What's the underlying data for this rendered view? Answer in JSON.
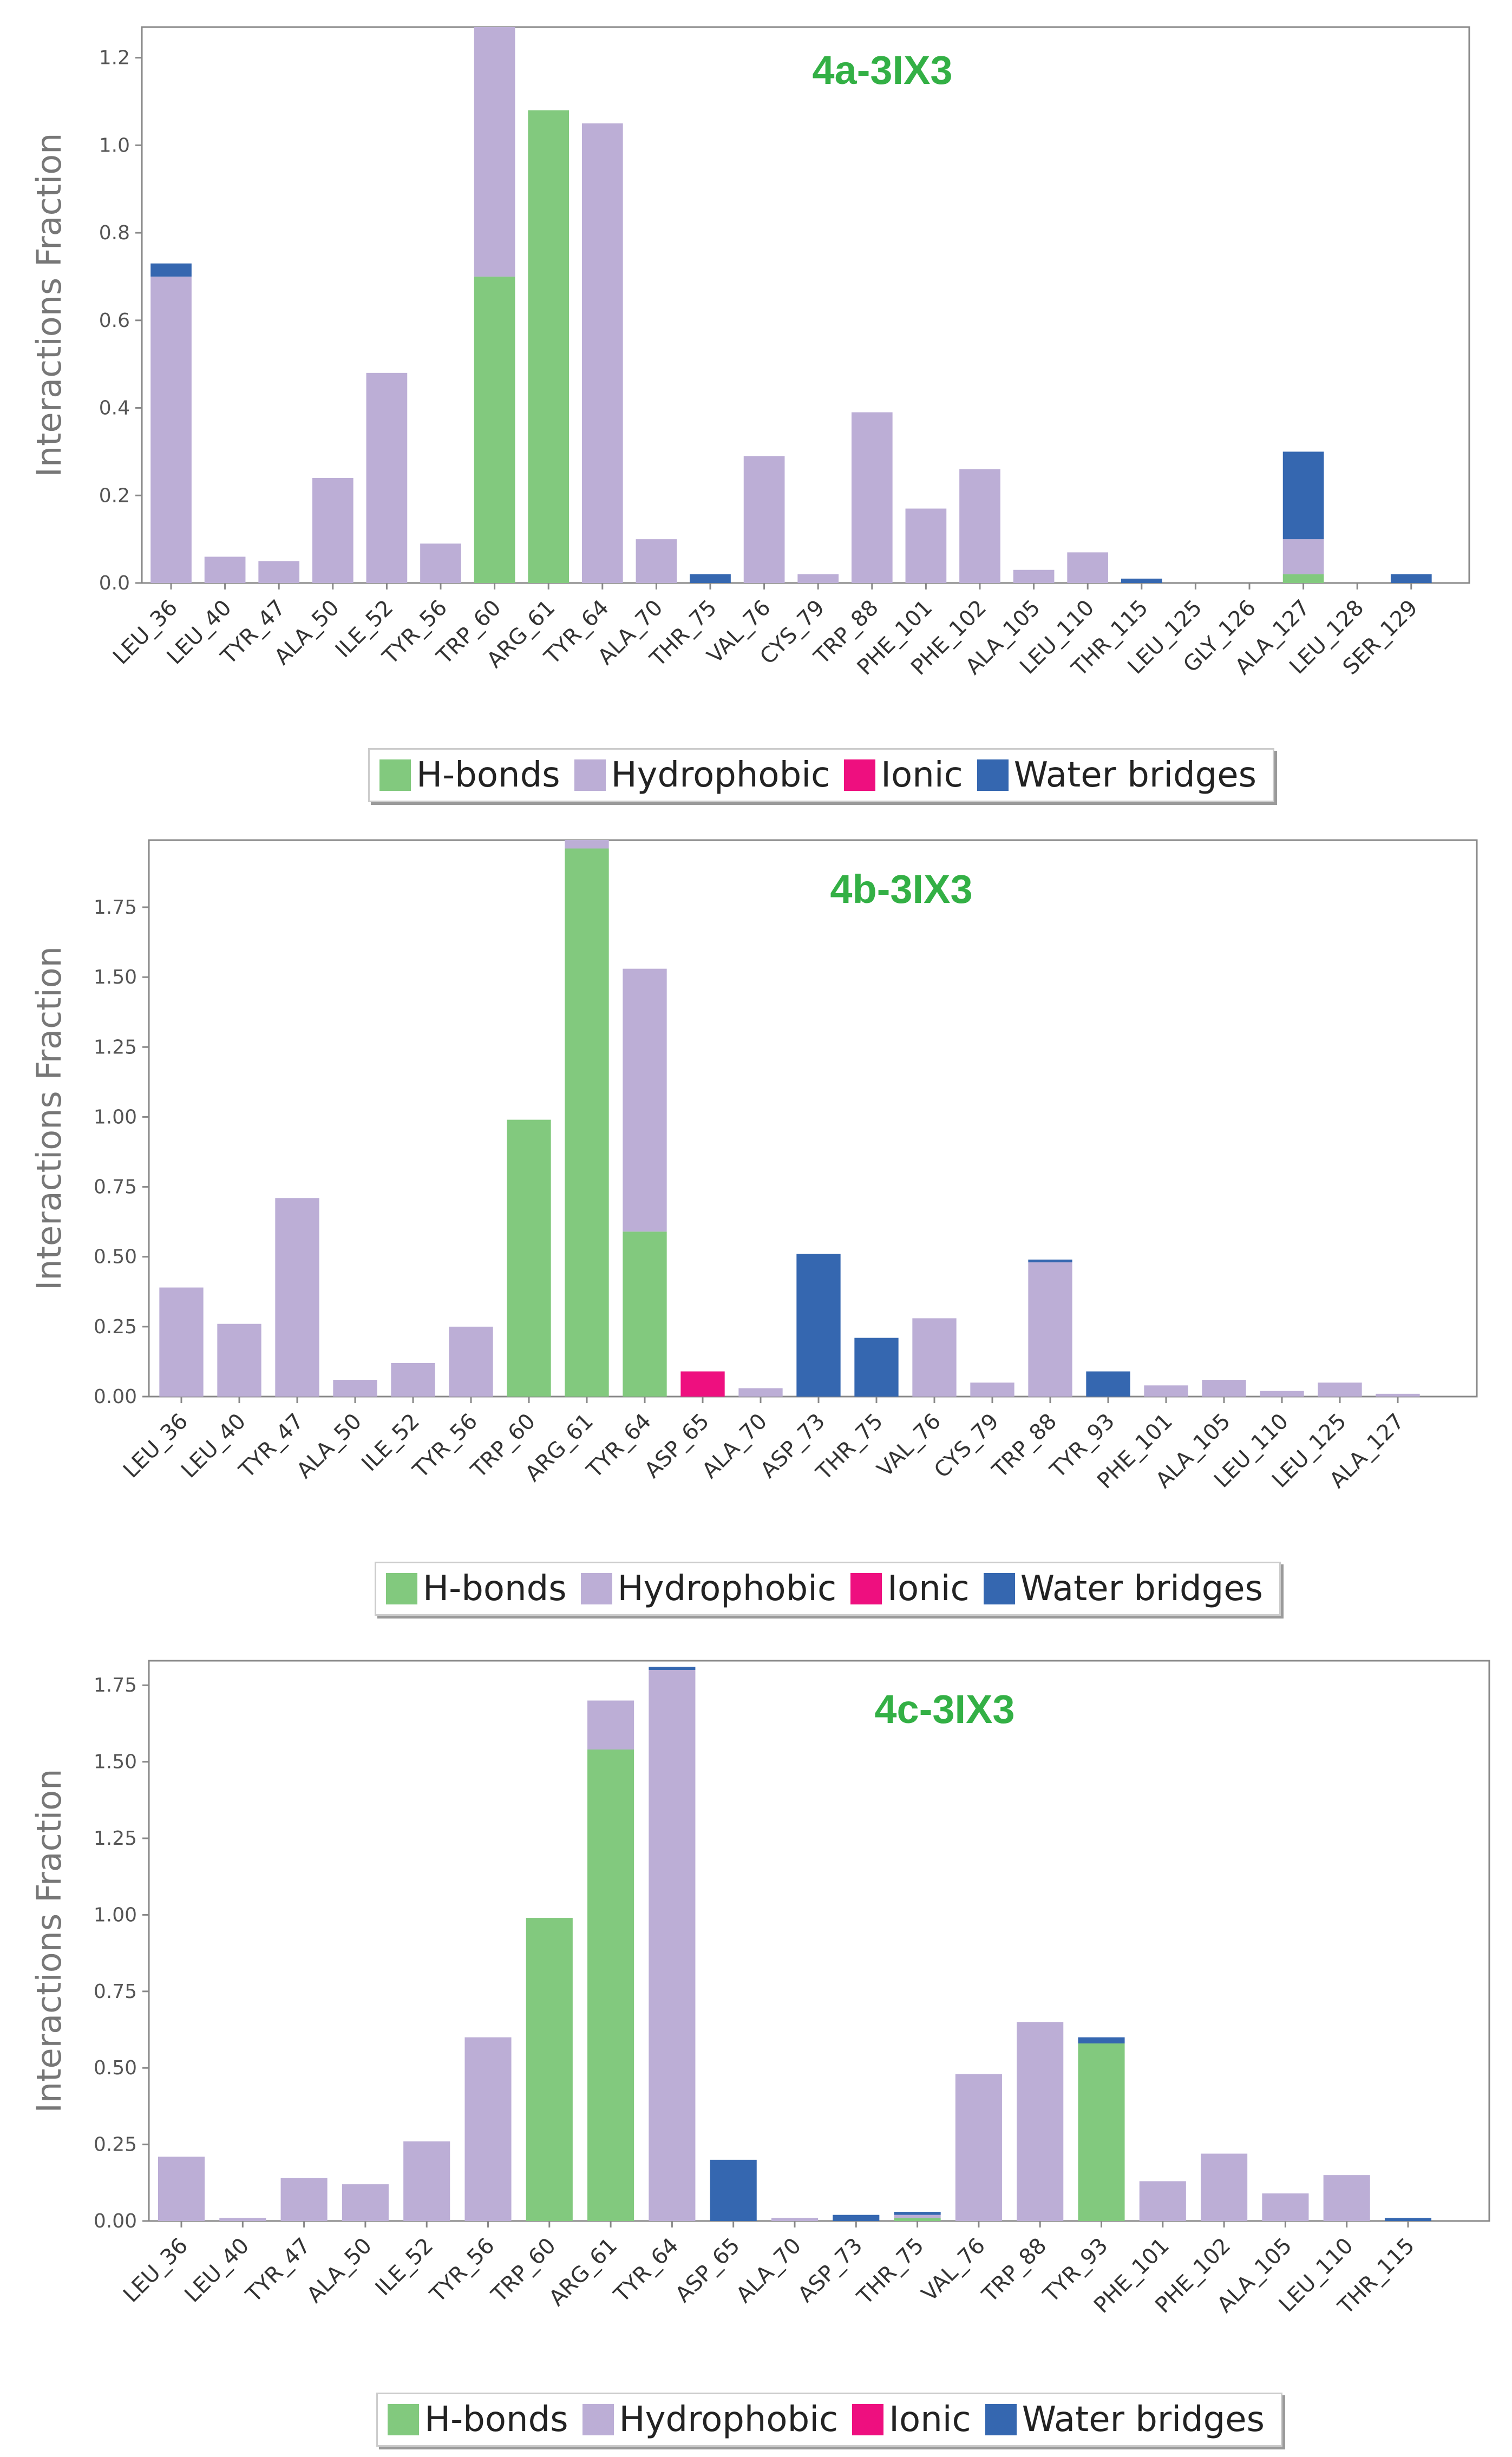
{
  "legend": {
    "labels": [
      "H-bonds",
      "Hydrophobic",
      "Ionic",
      "Water bridges"
    ]
  },
  "colors": {
    "H-bonds": "#82c97e",
    "Hydrophobic": "#bcaed6",
    "Ionic": "#ee0f7f",
    "Water bridges": "#3567b0",
    "title": "#33b045",
    "axis_text": "#555555"
  },
  "chart_data": [
    {
      "type": "bar",
      "stacked": true,
      "title": "4a-3IX3",
      "ylabel": "Interactions Fraction",
      "ylim": [
        0,
        1.27
      ],
      "yticks": [
        0.0,
        0.2,
        0.4,
        0.6,
        0.8,
        1.0,
        1.2
      ],
      "yticklabels": [
        "0.0",
        "0.2",
        "0.4",
        "0.6",
        "0.8",
        "1.0",
        "1.2"
      ],
      "categories": [
        "LEU_36",
        "LEU_40",
        "TYR_47",
        "ALA_50",
        "ILE_52",
        "TYR_56",
        "TRP_60",
        "ARG_61",
        "TYR_64",
        "ALA_70",
        "THR_75",
        "VAL_76",
        "CYS_79",
        "TRP_88",
        "PHE_101",
        "PHE_102",
        "ALA_105",
        "LEU_110",
        "THR_115",
        "LEU_125",
        "GLY_126",
        "ALA_127",
        "LEU_128",
        "SER_129"
      ],
      "series": [
        {
          "name": "H-bonds",
          "values": [
            0,
            0,
            0,
            0,
            0,
            0,
            0.7,
            1.08,
            0,
            0,
            0,
            0,
            0,
            0,
            0,
            0,
            0,
            0,
            0,
            0,
            0,
            0.02,
            0,
            0
          ]
        },
        {
          "name": "Hydrophobic",
          "values": [
            0.7,
            0.06,
            0.05,
            0.24,
            0.48,
            0.09,
            0.57,
            0,
            1.05,
            0.1,
            0,
            0.29,
            0.02,
            0.39,
            0.17,
            0.26,
            0.03,
            0.07,
            0,
            0,
            0,
            0.08,
            0,
            0
          ]
        },
        {
          "name": "Ionic",
          "values": [
            0,
            0,
            0,
            0,
            0,
            0,
            0,
            0,
            0,
            0,
            0,
            0,
            0,
            0,
            0,
            0,
            0,
            0,
            0,
            0,
            0,
            0,
            0,
            0
          ]
        },
        {
          "name": "Water bridges",
          "values": [
            0.03,
            0,
            0,
            0,
            0,
            0,
            0,
            0,
            0,
            0,
            0.02,
            0,
            0,
            0,
            0,
            0,
            0,
            0,
            0.01,
            0,
            0,
            0.2,
            0,
            0.02
          ]
        }
      ]
    },
    {
      "type": "bar",
      "stacked": true,
      "title": "4b-3IX3",
      "ylabel": "Interactions Fraction",
      "ylim": [
        0,
        1.99
      ],
      "yticks": [
        0.0,
        0.25,
        0.5,
        0.75,
        1.0,
        1.25,
        1.5,
        1.75
      ],
      "yticklabels": [
        "0.00",
        "0.25",
        "0.50",
        "0.75",
        "1.00",
        "1.25",
        "1.50",
        "1.75"
      ],
      "categories": [
        "LEU_36",
        "LEU_40",
        "TYR_47",
        "ALA_50",
        "ILE_52",
        "TYR_56",
        "TRP_60",
        "ARG_61",
        "TYR_64",
        "ASP_65",
        "ALA_70",
        "ASP_73",
        "THR_75",
        "VAL_76",
        "CYS_79",
        "TRP_88",
        "TYR_93",
        "PHE_101",
        "ALA_105",
        "LEU_110",
        "LEU_125",
        "ALA_127"
      ],
      "series": [
        {
          "name": "H-bonds",
          "values": [
            0,
            0,
            0,
            0,
            0,
            0,
            0.99,
            1.96,
            0.59,
            0,
            0,
            0,
            0,
            0,
            0,
            0,
            0,
            0,
            0,
            0,
            0,
            0
          ]
        },
        {
          "name": "Hydrophobic",
          "values": [
            0.39,
            0.26,
            0.71,
            0.06,
            0.12,
            0.25,
            0,
            0.04,
            0.94,
            0,
            0.03,
            0,
            0,
            0.28,
            0.05,
            0.48,
            0,
            0.04,
            0.06,
            0.02,
            0.05,
            0.01
          ]
        },
        {
          "name": "Ionic",
          "values": [
            0,
            0,
            0,
            0,
            0,
            0,
            0,
            0,
            0,
            0.09,
            0,
            0,
            0,
            0,
            0,
            0,
            0,
            0,
            0,
            0,
            0,
            0
          ]
        },
        {
          "name": "Water bridges",
          "values": [
            0,
            0,
            0,
            0,
            0,
            0,
            0,
            0,
            0,
            0,
            0,
            0.51,
            0.21,
            0,
            0,
            0.01,
            0.09,
            0,
            0,
            0,
            0,
            0
          ]
        }
      ]
    },
    {
      "type": "bar",
      "stacked": true,
      "title": "4c-3IX3",
      "ylabel": "Interactions Fraction",
      "ylim": [
        0,
        1.83
      ],
      "yticks": [
        0.0,
        0.25,
        0.5,
        0.75,
        1.0,
        1.25,
        1.5,
        1.75
      ],
      "yticklabels": [
        "0.00",
        "0.25",
        "0.50",
        "0.75",
        "1.00",
        "1.25",
        "1.50",
        "1.75"
      ],
      "categories": [
        "LEU_36",
        "LEU_40",
        "TYR_47",
        "ALA_50",
        "ILE_52",
        "TYR_56",
        "TRP_60",
        "ARG_61",
        "TYR_64",
        "ASP_65",
        "ALA_70",
        "ASP_73",
        "THR_75",
        "VAL_76",
        "TRP_88",
        "TYR_93",
        "PHE_101",
        "PHE_102",
        "ALA_105",
        "LEU_110",
        "THR_115"
      ],
      "series": [
        {
          "name": "H-bonds",
          "values": [
            0,
            0,
            0,
            0,
            0,
            0,
            0.99,
            1.54,
            0,
            0,
            0,
            0,
            0.01,
            0,
            0,
            0.58,
            0,
            0,
            0,
            0,
            0
          ]
        },
        {
          "name": "Hydrophobic",
          "values": [
            0.21,
            0.01,
            0.14,
            0.12,
            0.26,
            0.6,
            0,
            0.16,
            1.8,
            0,
            0.01,
            0,
            0.01,
            0.48,
            0.65,
            0,
            0.13,
            0.22,
            0.09,
            0.15,
            0
          ]
        },
        {
          "name": "Ionic",
          "values": [
            0,
            0,
            0,
            0,
            0,
            0,
            0,
            0,
            0,
            0,
            0,
            0,
            0,
            0,
            0,
            0,
            0,
            0,
            0,
            0,
            0
          ]
        },
        {
          "name": "Water bridges",
          "values": [
            0,
            0,
            0,
            0,
            0,
            0,
            0,
            0,
            0.01,
            0.2,
            0,
            0.02,
            0.01,
            0,
            0,
            0.02,
            0,
            0,
            0,
            0,
            0.01
          ]
        }
      ]
    }
  ]
}
